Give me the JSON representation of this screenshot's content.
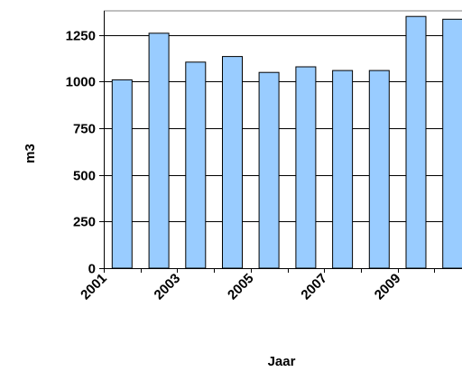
{
  "chart_data": {
    "type": "bar",
    "categories": [
      "2001",
      "2002",
      "2003",
      "2004",
      "2005",
      "2006",
      "2007",
      "2008",
      "2009",
      "2010"
    ],
    "x_tick_labels": [
      "2001",
      "2003",
      "2005",
      "2007",
      "2009"
    ],
    "values": [
      1010,
      1260,
      1105,
      1135,
      1050,
      1080,
      1060,
      1060,
      1350,
      1335
    ],
    "y_ticks": [
      0,
      250,
      500,
      750,
      1000,
      1250
    ],
    "ylim": [
      0,
      1380
    ],
    "xlabel": "Jaar",
    "ylabel": "m3",
    "grid": true,
    "colors": {
      "bar_fill": "#99ccff",
      "bar_stroke": "#000000",
      "grid": "#000000",
      "plot_border": "#808080"
    }
  }
}
